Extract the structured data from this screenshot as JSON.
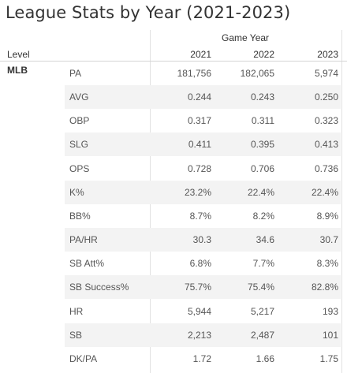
{
  "title": "League Stats by Year (2021-2023)",
  "header": {
    "column_group": "Game Year",
    "row_header": "Level",
    "years": [
      "2021",
      "2022",
      "2023"
    ]
  },
  "level": "MLB",
  "chart_data": {
    "type": "table",
    "title": "League Stats by Year (2021-2023)",
    "columns": [
      "2021",
      "2022",
      "2023"
    ],
    "rows": [
      {
        "metric": "PA",
        "values": [
          "181,756",
          "182,065",
          "5,974"
        ]
      },
      {
        "metric": "AVG",
        "values": [
          "0.244",
          "0.243",
          "0.250"
        ]
      },
      {
        "metric": "OBP",
        "values": [
          "0.317",
          "0.311",
          "0.323"
        ]
      },
      {
        "metric": "SLG",
        "values": [
          "0.411",
          "0.395",
          "0.413"
        ]
      },
      {
        "metric": "OPS",
        "values": [
          "0.728",
          "0.706",
          "0.736"
        ]
      },
      {
        "metric": "K%",
        "values": [
          "23.2%",
          "22.4%",
          "22.4%"
        ]
      },
      {
        "metric": "BB%",
        "values": [
          "8.7%",
          "8.2%",
          "8.9%"
        ]
      },
      {
        "metric": "PA/HR",
        "values": [
          "30.3",
          "34.6",
          "30.7"
        ]
      },
      {
        "metric": "SB Att%",
        "values": [
          "6.8%",
          "7.7%",
          "8.3%"
        ]
      },
      {
        "metric": "SB Success%",
        "values": [
          "75.7%",
          "75.4%",
          "82.8%"
        ]
      },
      {
        "metric": "HR",
        "values": [
          "5,944",
          "5,217",
          "193"
        ]
      },
      {
        "metric": "SB",
        "values": [
          "2,213",
          "2,487",
          "101"
        ]
      },
      {
        "metric": "DK/PA",
        "values": [
          "1.72",
          "1.66",
          "1.75"
        ]
      }
    ]
  }
}
